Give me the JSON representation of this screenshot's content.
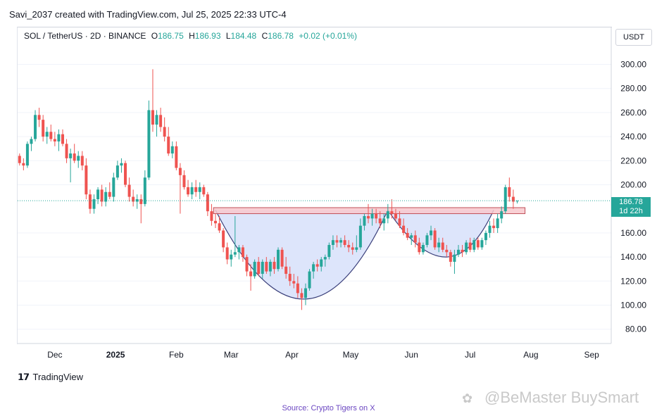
{
  "header": {
    "attribution": "Savi_2037 created with TradingView.com, Jul 25, 2025 22:33 UTC-4"
  },
  "ohlc": {
    "symbol": "SOL / TetherUS · 2D · BINANCE",
    "open_label": "O",
    "open": "186.75",
    "high_label": "H",
    "high": "186.93",
    "low_label": "L",
    "low": "184.48",
    "close_label": "C",
    "close": "186.78",
    "change": "+0.02 (+0.01%)"
  },
  "currency_button": "USDT",
  "price_tag": {
    "price": "186.78",
    "countdown": "1d 22h"
  },
  "branding": {
    "logo_text": "TradingView"
  },
  "watermark": "@BeMaster BuySmart",
  "source": {
    "label": "Source:",
    "link": "Crypto Tigers on X"
  },
  "colors": {
    "up": "#26a69a",
    "down": "#ef5350",
    "resistance_fill": "#f8c8cc",
    "resistance_stroke": "#c0505a",
    "cup_fill": "#dde5fb",
    "cup_stroke": "#3a3f7a",
    "grid": "#f0f3fa"
  },
  "chart_data": {
    "type": "candlestick",
    "y_ticks": [
      "300.00",
      "280.00",
      "260.00",
      "240.00",
      "220.00",
      "200.00",
      "160.00",
      "140.00",
      "120.00",
      "100.00",
      "80.00"
    ],
    "x_ticks": [
      "Dec",
      "2025",
      "Feb",
      "Mar",
      "Apr",
      "May",
      "Jun",
      "Jul",
      "Aug",
      "Sep"
    ],
    "ylim": [
      70,
      310
    ],
    "xlim": [
      "2024-11-12",
      "2025-09-11"
    ],
    "resistance_zone": {
      "from": "2025-02-20",
      "to": "2025-07-29",
      "low": 176,
      "high": 181
    },
    "cup": {
      "from": "2025-02-21",
      "bottom": "2025-04-08",
      "to": "2025-05-20",
      "rim": 179,
      "min": 105
    },
    "handle": {
      "from": "2025-05-20",
      "bottom": "2025-06-21",
      "to": "2025-07-13",
      "rim": 179,
      "min": 140
    },
    "last_close": 186.78,
    "candles": [
      {
        "d": "2024-11-13",
        "o": 224,
        "h": 226,
        "l": 216,
        "c": 218
      },
      {
        "d": "2024-11-15",
        "o": 218,
        "h": 222,
        "l": 212,
        "c": 216
      },
      {
        "d": "2024-11-17",
        "o": 216,
        "h": 236,
        "l": 214,
        "c": 234
      },
      {
        "d": "2024-11-19",
        "o": 234,
        "h": 240,
        "l": 228,
        "c": 238
      },
      {
        "d": "2024-11-21",
        "o": 238,
        "h": 262,
        "l": 236,
        "c": 258
      },
      {
        "d": "2024-11-23",
        "o": 258,
        "h": 264,
        "l": 248,
        "c": 254
      },
      {
        "d": "2024-11-25",
        "o": 254,
        "h": 258,
        "l": 236,
        "c": 240
      },
      {
        "d": "2024-11-27",
        "o": 240,
        "h": 248,
        "l": 234,
        "c": 244
      },
      {
        "d": "2024-11-29",
        "o": 244,
        "h": 250,
        "l": 236,
        "c": 238
      },
      {
        "d": "2024-12-01",
        "o": 238,
        "h": 244,
        "l": 232,
        "c": 236
      },
      {
        "d": "2024-12-03",
        "o": 236,
        "h": 246,
        "l": 228,
        "c": 242
      },
      {
        "d": "2024-12-05",
        "o": 242,
        "h": 246,
        "l": 232,
        "c": 234
      },
      {
        "d": "2024-12-07",
        "o": 234,
        "h": 238,
        "l": 218,
        "c": 222
      },
      {
        "d": "2024-12-09",
        "o": 222,
        "h": 230,
        "l": 202,
        "c": 226
      },
      {
        "d": "2024-12-11",
        "o": 226,
        "h": 234,
        "l": 218,
        "c": 220
      },
      {
        "d": "2024-12-13",
        "o": 220,
        "h": 228,
        "l": 214,
        "c": 224
      },
      {
        "d": "2024-12-15",
        "o": 224,
        "h": 228,
        "l": 212,
        "c": 216
      },
      {
        "d": "2024-12-17",
        "o": 216,
        "h": 222,
        "l": 188,
        "c": 192
      },
      {
        "d": "2024-12-19",
        "o": 192,
        "h": 196,
        "l": 176,
        "c": 180
      },
      {
        "d": "2024-12-21",
        "o": 180,
        "h": 192,
        "l": 176,
        "c": 188
      },
      {
        "d": "2024-12-23",
        "o": 188,
        "h": 198,
        "l": 184,
        "c": 196
      },
      {
        "d": "2024-12-25",
        "o": 196,
        "h": 200,
        "l": 182,
        "c": 186
      },
      {
        "d": "2024-12-27",
        "o": 186,
        "h": 198,
        "l": 182,
        "c": 194
      },
      {
        "d": "2024-12-29",
        "o": 194,
        "h": 202,
        "l": 188,
        "c": 190
      },
      {
        "d": "2024-12-31",
        "o": 190,
        "h": 210,
        "l": 186,
        "c": 206
      },
      {
        "d": "2025-01-02",
        "o": 206,
        "h": 220,
        "l": 204,
        "c": 216
      },
      {
        "d": "2025-01-04",
        "o": 216,
        "h": 222,
        "l": 210,
        "c": 218
      },
      {
        "d": "2025-01-06",
        "o": 218,
        "h": 220,
        "l": 198,
        "c": 200
      },
      {
        "d": "2025-01-08",
        "o": 200,
        "h": 206,
        "l": 186,
        "c": 190
      },
      {
        "d": "2025-01-10",
        "o": 190,
        "h": 196,
        "l": 182,
        "c": 186
      },
      {
        "d": "2025-01-12",
        "o": 186,
        "h": 192,
        "l": 180,
        "c": 188
      },
      {
        "d": "2025-01-14",
        "o": 188,
        "h": 192,
        "l": 168,
        "c": 184
      },
      {
        "d": "2025-01-16",
        "o": 184,
        "h": 212,
        "l": 182,
        "c": 206
      },
      {
        "d": "2025-01-18",
        "o": 206,
        "h": 270,
        "l": 204,
        "c": 262
      },
      {
        "d": "2025-01-20",
        "o": 262,
        "h": 296,
        "l": 244,
        "c": 250
      },
      {
        "d": "2025-01-22",
        "o": 250,
        "h": 262,
        "l": 240,
        "c": 258
      },
      {
        "d": "2025-01-24",
        "o": 258,
        "h": 264,
        "l": 244,
        "c": 248
      },
      {
        "d": "2025-01-26",
        "o": 248,
        "h": 256,
        "l": 236,
        "c": 240
      },
      {
        "d": "2025-01-28",
        "o": 240,
        "h": 248,
        "l": 224,
        "c": 226
      },
      {
        "d": "2025-01-30",
        "o": 226,
        "h": 236,
        "l": 222,
        "c": 232
      },
      {
        "d": "2025-02-01",
        "o": 232,
        "h": 236,
        "l": 212,
        "c": 214
      },
      {
        "d": "2025-02-03",
        "o": 214,
        "h": 218,
        "l": 176,
        "c": 208
      },
      {
        "d": "2025-02-05",
        "o": 208,
        "h": 212,
        "l": 196,
        "c": 198
      },
      {
        "d": "2025-02-07",
        "o": 198,
        "h": 204,
        "l": 190,
        "c": 192
      },
      {
        "d": "2025-02-09",
        "o": 192,
        "h": 202,
        "l": 188,
        "c": 198
      },
      {
        "d": "2025-02-11",
        "o": 198,
        "h": 204,
        "l": 190,
        "c": 194
      },
      {
        "d": "2025-02-13",
        "o": 194,
        "h": 202,
        "l": 188,
        "c": 198
      },
      {
        "d": "2025-02-15",
        "o": 198,
        "h": 200,
        "l": 190,
        "c": 192
      },
      {
        "d": "2025-02-17",
        "o": 192,
        "h": 194,
        "l": 174,
        "c": 178
      },
      {
        "d": "2025-02-19",
        "o": 178,
        "h": 184,
        "l": 166,
        "c": 170
      },
      {
        "d": "2025-02-21",
        "o": 170,
        "h": 176,
        "l": 164,
        "c": 168
      },
      {
        "d": "2025-02-23",
        "o": 168,
        "h": 174,
        "l": 160,
        "c": 162
      },
      {
        "d": "2025-02-25",
        "o": 162,
        "h": 164,
        "l": 144,
        "c": 148
      },
      {
        "d": "2025-02-27",
        "o": 148,
        "h": 152,
        "l": 134,
        "c": 138
      },
      {
        "d": "2025-03-01",
        "o": 138,
        "h": 146,
        "l": 132,
        "c": 142
      },
      {
        "d": "2025-03-03",
        "o": 142,
        "h": 174,
        "l": 140,
        "c": 144
      },
      {
        "d": "2025-03-05",
        "o": 144,
        "h": 150,
        "l": 138,
        "c": 148
      },
      {
        "d": "2025-03-07",
        "o": 148,
        "h": 150,
        "l": 136,
        "c": 140
      },
      {
        "d": "2025-03-09",
        "o": 140,
        "h": 142,
        "l": 124,
        "c": 128
      },
      {
        "d": "2025-03-11",
        "o": 128,
        "h": 134,
        "l": 112,
        "c": 124
      },
      {
        "d": "2025-03-13",
        "o": 124,
        "h": 138,
        "l": 122,
        "c": 136
      },
      {
        "d": "2025-03-15",
        "o": 136,
        "h": 140,
        "l": 124,
        "c": 126
      },
      {
        "d": "2025-03-17",
        "o": 126,
        "h": 138,
        "l": 122,
        "c": 136
      },
      {
        "d": "2025-03-19",
        "o": 136,
        "h": 140,
        "l": 126,
        "c": 128
      },
      {
        "d": "2025-03-21",
        "o": 128,
        "h": 138,
        "l": 124,
        "c": 136
      },
      {
        "d": "2025-03-23",
        "o": 136,
        "h": 140,
        "l": 126,
        "c": 130
      },
      {
        "d": "2025-03-25",
        "o": 130,
        "h": 148,
        "l": 128,
        "c": 146
      },
      {
        "d": "2025-03-27",
        "o": 146,
        "h": 148,
        "l": 130,
        "c": 132
      },
      {
        "d": "2025-03-29",
        "o": 132,
        "h": 140,
        "l": 122,
        "c": 126
      },
      {
        "d": "2025-03-31",
        "o": 126,
        "h": 132,
        "l": 116,
        "c": 120
      },
      {
        "d": "2025-04-02",
        "o": 120,
        "h": 126,
        "l": 114,
        "c": 118
      },
      {
        "d": "2025-04-04",
        "o": 118,
        "h": 124,
        "l": 106,
        "c": 110
      },
      {
        "d": "2025-04-06",
        "o": 110,
        "h": 114,
        "l": 96,
        "c": 106
      },
      {
        "d": "2025-04-08",
        "o": 106,
        "h": 118,
        "l": 100,
        "c": 114
      },
      {
        "d": "2025-04-10",
        "o": 114,
        "h": 130,
        "l": 112,
        "c": 128
      },
      {
        "d": "2025-04-12",
        "o": 128,
        "h": 136,
        "l": 122,
        "c": 134
      },
      {
        "d": "2025-04-14",
        "o": 134,
        "h": 138,
        "l": 128,
        "c": 132
      },
      {
        "d": "2025-04-16",
        "o": 132,
        "h": 140,
        "l": 128,
        "c": 138
      },
      {
        "d": "2025-04-18",
        "o": 138,
        "h": 142,
        "l": 132,
        "c": 140
      },
      {
        "d": "2025-04-20",
        "o": 140,
        "h": 152,
        "l": 138,
        "c": 150
      },
      {
        "d": "2025-04-22",
        "o": 150,
        "h": 158,
        "l": 146,
        "c": 154
      },
      {
        "d": "2025-04-24",
        "o": 154,
        "h": 158,
        "l": 148,
        "c": 152
      },
      {
        "d": "2025-04-26",
        "o": 152,
        "h": 156,
        "l": 148,
        "c": 154
      },
      {
        "d": "2025-04-28",
        "o": 154,
        "h": 158,
        "l": 148,
        "c": 150
      },
      {
        "d": "2025-04-30",
        "o": 150,
        "h": 154,
        "l": 144,
        "c": 148
      },
      {
        "d": "2025-05-02",
        "o": 148,
        "h": 152,
        "l": 142,
        "c": 146
      },
      {
        "d": "2025-05-04",
        "o": 146,
        "h": 158,
        "l": 144,
        "c": 148
      },
      {
        "d": "2025-05-06",
        "o": 148,
        "h": 172,
        "l": 146,
        "c": 166
      },
      {
        "d": "2025-05-08",
        "o": 166,
        "h": 176,
        "l": 162,
        "c": 174
      },
      {
        "d": "2025-05-10",
        "o": 174,
        "h": 184,
        "l": 168,
        "c": 172
      },
      {
        "d": "2025-05-12",
        "o": 172,
        "h": 180,
        "l": 166,
        "c": 176
      },
      {
        "d": "2025-05-14",
        "o": 176,
        "h": 180,
        "l": 168,
        "c": 172
      },
      {
        "d": "2025-05-16",
        "o": 172,
        "h": 178,
        "l": 164,
        "c": 168
      },
      {
        "d": "2025-05-18",
        "o": 168,
        "h": 176,
        "l": 162,
        "c": 172
      },
      {
        "d": "2025-05-20",
        "o": 172,
        "h": 184,
        "l": 168,
        "c": 178
      },
      {
        "d": "2025-05-22",
        "o": 178,
        "h": 188,
        "l": 172,
        "c": 176
      },
      {
        "d": "2025-05-24",
        "o": 176,
        "h": 180,
        "l": 170,
        "c": 172
      },
      {
        "d": "2025-05-26",
        "o": 172,
        "h": 178,
        "l": 164,
        "c": 166
      },
      {
        "d": "2025-05-28",
        "o": 166,
        "h": 172,
        "l": 158,
        "c": 160
      },
      {
        "d": "2025-05-30",
        "o": 160,
        "h": 164,
        "l": 154,
        "c": 156
      },
      {
        "d": "2025-06-01",
        "o": 156,
        "h": 160,
        "l": 150,
        "c": 158
      },
      {
        "d": "2025-06-03",
        "o": 158,
        "h": 162,
        "l": 148,
        "c": 152
      },
      {
        "d": "2025-06-05",
        "o": 152,
        "h": 156,
        "l": 142,
        "c": 144
      },
      {
        "d": "2025-06-07",
        "o": 144,
        "h": 152,
        "l": 142,
        "c": 150
      },
      {
        "d": "2025-06-09",
        "o": 150,
        "h": 160,
        "l": 148,
        "c": 158
      },
      {
        "d": "2025-06-11",
        "o": 158,
        "h": 166,
        "l": 154,
        "c": 162
      },
      {
        "d": "2025-06-13",
        "o": 162,
        "h": 164,
        "l": 146,
        "c": 148
      },
      {
        "d": "2025-06-15",
        "o": 148,
        "h": 156,
        "l": 144,
        "c": 152
      },
      {
        "d": "2025-06-17",
        "o": 152,
        "h": 156,
        "l": 144,
        "c": 146
      },
      {
        "d": "2025-06-19",
        "o": 146,
        "h": 150,
        "l": 140,
        "c": 144
      },
      {
        "d": "2025-06-21",
        "o": 144,
        "h": 146,
        "l": 132,
        "c": 136
      },
      {
        "d": "2025-06-23",
        "o": 136,
        "h": 146,
        "l": 126,
        "c": 142
      },
      {
        "d": "2025-06-25",
        "o": 142,
        "h": 150,
        "l": 140,
        "c": 146
      },
      {
        "d": "2025-06-27",
        "o": 146,
        "h": 150,
        "l": 140,
        "c": 144
      },
      {
        "d": "2025-06-29",
        "o": 144,
        "h": 154,
        "l": 142,
        "c": 152
      },
      {
        "d": "2025-07-01",
        "o": 152,
        "h": 156,
        "l": 144,
        "c": 146
      },
      {
        "d": "2025-07-03",
        "o": 146,
        "h": 156,
        "l": 144,
        "c": 154
      },
      {
        "d": "2025-07-05",
        "o": 154,
        "h": 156,
        "l": 146,
        "c": 148
      },
      {
        "d": "2025-07-07",
        "o": 148,
        "h": 156,
        "l": 146,
        "c": 154
      },
      {
        "d": "2025-07-09",
        "o": 154,
        "h": 162,
        "l": 150,
        "c": 160
      },
      {
        "d": "2025-07-11",
        "o": 160,
        "h": 170,
        "l": 156,
        "c": 166
      },
      {
        "d": "2025-07-13",
        "o": 166,
        "h": 172,
        "l": 160,
        "c": 164
      },
      {
        "d": "2025-07-15",
        "o": 164,
        "h": 176,
        "l": 160,
        "c": 172
      },
      {
        "d": "2025-07-17",
        "o": 172,
        "h": 182,
        "l": 168,
        "c": 178
      },
      {
        "d": "2025-07-19",
        "o": 178,
        "h": 200,
        "l": 176,
        "c": 198
      },
      {
        "d": "2025-07-21",
        "o": 198,
        "h": 206,
        "l": 186,
        "c": 190
      },
      {
        "d": "2025-07-23",
        "o": 190,
        "h": 196,
        "l": 180,
        "c": 186
      },
      {
        "d": "2025-07-25",
        "o": 186.75,
        "h": 186.93,
        "l": 184.48,
        "c": 186.78
      }
    ]
  }
}
